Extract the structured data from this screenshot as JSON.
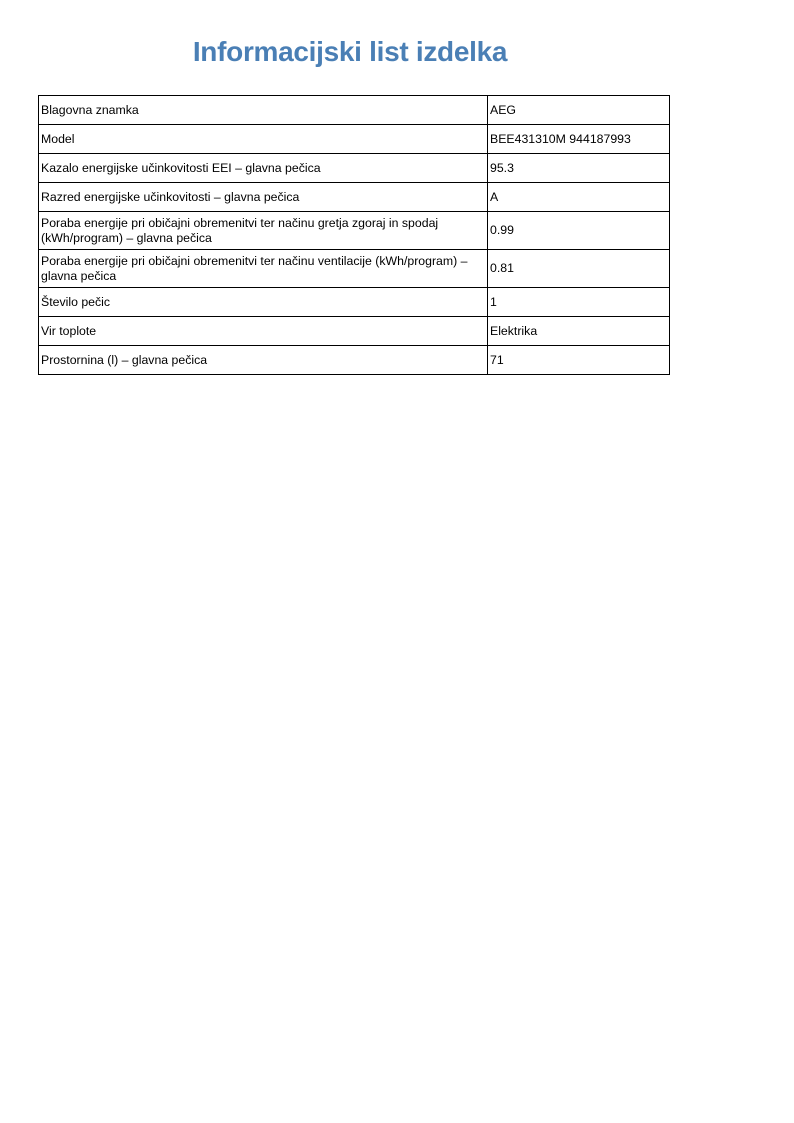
{
  "title": "Informacijski list izdelka",
  "rows": [
    {
      "label": "Blagovna znamka",
      "value": "AEG"
    },
    {
      "label": "Model",
      "value": "BEE431310M 944187993"
    },
    {
      "label": "Kazalo energijske učinkovitosti EEI – glavna pečica",
      "value": "95.3"
    },
    {
      "label": "Razred energijske učinkovitosti – glavna pečica",
      "value": "A"
    },
    {
      "label": "Poraba energije pri običajni obremenitvi ter načinu gretja zgoraj in spodaj (kWh/program) – glavna pečica",
      "value": "0.99"
    },
    {
      "label": "Poraba energije pri običajni obremenitvi ter načinu ventilacije (kWh/program) – glavna pečica",
      "value": "0.81"
    },
    {
      "label": "Število pečic",
      "value": "1"
    },
    {
      "label": "Vir toplote",
      "value": "Elektrika"
    },
    {
      "label": "Prostornina (l) – glavna pečica",
      "value": "71"
    }
  ]
}
